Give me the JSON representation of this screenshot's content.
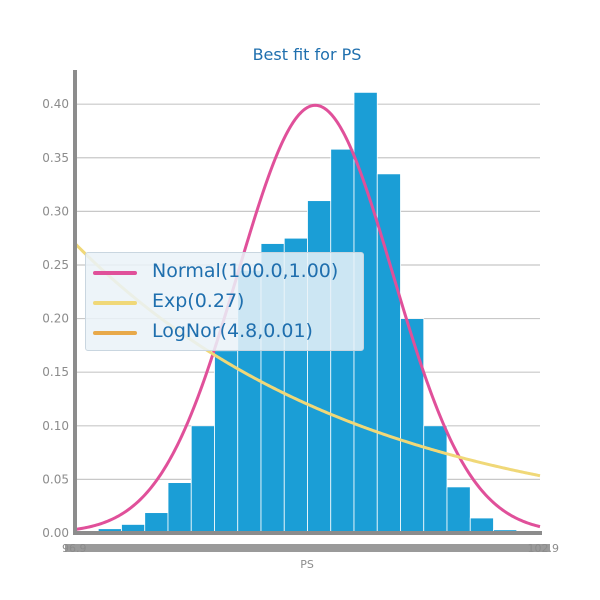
{
  "chart_data": {
    "type": "bar",
    "title": "Best fit for PS",
    "xlabel": "PS",
    "ylabel": "",
    "xlim": [
      96.9,
      102.9
    ],
    "ylim": [
      0.0,
      0.43
    ],
    "grid": true,
    "legend_position": "center-left",
    "colors": {
      "bars": "#1b9ed6",
      "normal": "#e0509a",
      "exp": "#f0d878",
      "lognorm": "#e8a94a",
      "title": "#1f6fae",
      "axis": "#8c8c8c",
      "tick_label": "#8c8c8c",
      "grid": "#c8c8c8"
    },
    "yticks": [
      "0.00",
      "0.05",
      "0.10",
      "0.15",
      "0.20",
      "0.25",
      "0.30",
      "0.35",
      "0.40"
    ],
    "xtick_left_label": "96.9",
    "xtick_right_label": "102.9",
    "histogram": {
      "bin_edges": [
        96.9,
        97.2,
        97.5,
        97.8,
        98.1,
        98.4,
        98.7,
        99.0,
        99.3,
        99.6,
        99.9,
        100.2,
        100.5,
        100.8,
        101.1,
        101.4,
        101.7,
        102.0,
        102.3,
        102.6,
        102.9
      ],
      "densities": [
        0.001,
        0.004,
        0.008,
        0.019,
        0.047,
        0.1,
        0.17,
        0.245,
        0.27,
        0.275,
        0.31,
        0.358,
        0.411,
        0.335,
        0.2,
        0.1,
        0.043,
        0.014,
        0.003,
        0.001
      ]
    },
    "series": [
      {
        "name": "Normal(100.0,1.00)",
        "distribution": "normal",
        "mu": 100.0,
        "sigma": 1.0
      },
      {
        "name": "Exp(0.27)",
        "distribution": "exponential",
        "rate": 0.27
      },
      {
        "name": "LogNor(4.8,0.01)",
        "distribution": "lognormal",
        "mu": 4.8,
        "sigma": 0.01
      }
    ]
  }
}
